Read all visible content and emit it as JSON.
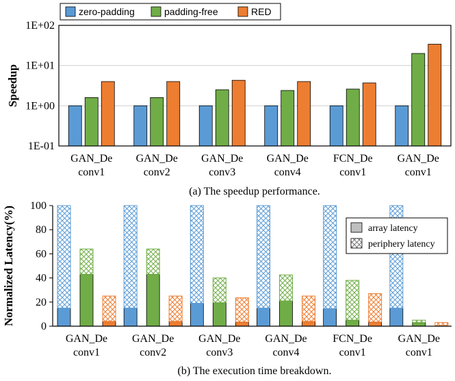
{
  "colors": {
    "zero-padding": "#5b9bd5",
    "padding-free": "#70ad47",
    "RED": "#ed7d31",
    "grid": "#d0d0d0",
    "axis": "#000000"
  },
  "chart_data": [
    {
      "type": "bar",
      "title": "(a) The speedup performance.",
      "xlabel": "",
      "ylabel": "Speedup",
      "yscale": "log",
      "ylim": [
        0.1,
        100
      ],
      "yticks": [
        "1E-01",
        "1E+00",
        "1E+01",
        "1E+02"
      ],
      "ytick_values": [
        0.1,
        1,
        10,
        100
      ],
      "grid": true,
      "legend_position": "top-left, outside",
      "categories": [
        [
          "GAN_De",
          "conv1"
        ],
        [
          "GAN_De",
          "conv2"
        ],
        [
          "GAN_De",
          "conv3"
        ],
        [
          "GAN_De",
          "conv4"
        ],
        [
          "FCN_De",
          "conv1"
        ],
        [
          "GAN_De",
          "conv1"
        ]
      ],
      "series": [
        {
          "name": "zero-padding",
          "values": [
            1,
            1,
            1,
            1,
            1,
            1
          ]
        },
        {
          "name": "padding-free",
          "values": [
            1.6,
            1.6,
            2.5,
            2.4,
            2.6,
            20
          ]
        },
        {
          "name": "RED",
          "values": [
            4.0,
            4.0,
            4.3,
            4.0,
            3.7,
            34
          ]
        }
      ]
    },
    {
      "type": "bar",
      "subtype": "stacked",
      "title": "(b) The execution time breakdown.",
      "xlabel": "",
      "ylabel": "Normalized Latency(%)",
      "ylim": [
        0,
        100
      ],
      "yticks": [
        "0",
        "20",
        "40",
        "60",
        "80",
        "100"
      ],
      "ytick_values": [
        0,
        20,
        40,
        60,
        80,
        100
      ],
      "grid": false,
      "legend_position": "top-right, inside",
      "legend": [
        "array latency",
        "periphery latency"
      ],
      "categories": [
        [
          "GAN_De",
          "conv1"
        ],
        [
          "GAN_De",
          "conv2"
        ],
        [
          "GAN_De",
          "conv3"
        ],
        [
          "GAN_De",
          "conv4"
        ],
        [
          "FCN_De",
          "conv1"
        ],
        [
          "GAN_De",
          "conv1"
        ]
      ],
      "series": [
        {
          "name": "zero-padding",
          "array_latency": [
            15,
            15,
            19,
            15,
            14.5,
            15
          ],
          "periphery_latency": [
            85,
            85,
            81,
            85,
            85.5,
            85
          ]
        },
        {
          "name": "padding-free",
          "array_latency": [
            43,
            43,
            19.5,
            21,
            5,
            3
          ],
          "periphery_latency": [
            21,
            21,
            20.5,
            21.5,
            33,
            2
          ]
        },
        {
          "name": "RED",
          "array_latency": [
            4,
            4,
            3.5,
            4,
            3.5,
            0.5
          ],
          "periphery_latency": [
            21,
            21,
            20,
            21,
            23.5,
            2.5
          ]
        }
      ]
    }
  ]
}
